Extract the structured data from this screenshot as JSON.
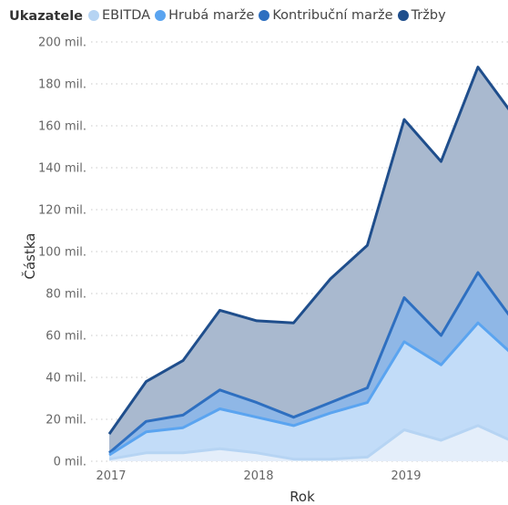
{
  "legend": {
    "title": "Ukazatele"
  },
  "chart_data": {
    "type": "area",
    "xlabel": "Rok",
    "ylabel": "Částka",
    "x_ticks": [
      {
        "value": 0,
        "label": "2017"
      },
      {
        "value": 4,
        "label": "2018"
      },
      {
        "value": 8,
        "label": "2019"
      }
    ],
    "x": [
      0,
      1,
      2,
      3,
      4,
      5,
      6,
      7,
      8,
      9,
      10,
      11
    ],
    "ylim": [
      0,
      200
    ],
    "y_ticks": [
      {
        "value": 0,
        "label": "0 mil."
      },
      {
        "value": 20,
        "label": "20 mil."
      },
      {
        "value": 40,
        "label": "40 mil."
      },
      {
        "value": 60,
        "label": "60 mil."
      },
      {
        "value": 80,
        "label": "80 mil."
      },
      {
        "value": 100,
        "label": "100 mil."
      },
      {
        "value": 120,
        "label": "120 mil."
      },
      {
        "value": 140,
        "label": "140 mil."
      },
      {
        "value": 160,
        "label": "160 mil."
      },
      {
        "value": 180,
        "label": "180 mil."
      },
      {
        "value": 200,
        "label": "200 mil."
      }
    ],
    "grid": true,
    "legend_position": "top-left",
    "series": [
      {
        "name": "Tržby",
        "color": "#1f4e8c",
        "fill": "#a9b9cf",
        "values": [
          13,
          38,
          48,
          72,
          67,
          66,
          87,
          103,
          163,
          143,
          188,
          164
        ]
      },
      {
        "name": "Kontribuční marže",
        "color": "#2e6fc0",
        "fill": "#8fb7e6",
        "values": [
          4,
          19,
          22,
          34,
          28,
          21,
          28,
          35,
          78,
          60,
          90,
          66
        ]
      },
      {
        "name": "Hrubá marže",
        "color": "#5aa4f0",
        "fill": "#c2dcf8",
        "values": [
          3,
          14,
          16,
          25,
          21,
          17,
          23,
          28,
          57,
          46,
          66,
          50
        ]
      },
      {
        "name": "EBITDA",
        "color": "#b6d4f3",
        "fill": "#e4eefa",
        "values": [
          1,
          4,
          4,
          6,
          4,
          1,
          1,
          2,
          15,
          10,
          17,
          9
        ]
      }
    ]
  }
}
